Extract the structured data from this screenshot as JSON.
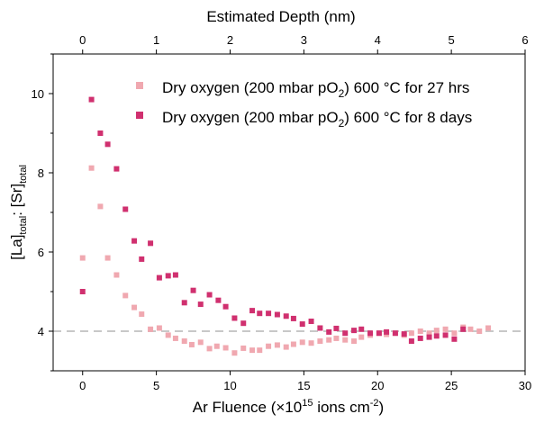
{
  "chart_data": {
    "type": "scatter",
    "xlabel_main": "Ar Fluence (×10",
    "xlabel_sup": "15",
    "xlabel_rest": " ions cm",
    "xlabel_sup2": "-2",
    "xlabel_end": ")",
    "x2label": "Estimated Depth (nm)",
    "ylabel_a": "[La]",
    "ylabel_a_sub": "total",
    "ylabel_b": ": [Sr]",
    "ylabel_b_sub": "total",
    "xlim": [
      -2,
      30
    ],
    "ylim": [
      3,
      11
    ],
    "x2lim": [
      -0.4,
      6
    ],
    "x_ticks": [
      0,
      5,
      10,
      15,
      20,
      25,
      30
    ],
    "y_ticks": [
      4,
      6,
      8,
      10
    ],
    "x2_ticks": [
      0,
      1,
      2,
      3,
      4,
      5,
      6
    ],
    "reference_line": {
      "y": 4,
      "color": "#c8c8c8",
      "style": "dashed"
    },
    "grid": false,
    "legend_position": "top-right",
    "series": [
      {
        "name_main": "Dry oxygen (200 mbar pO",
        "name_sub": "2",
        "name_end": ") 600 °C for 27 hrs",
        "color": "#f0a8b0",
        "points": [
          [
            0.0,
            5.85
          ],
          [
            0.6,
            8.12
          ],
          [
            1.2,
            7.15
          ],
          [
            1.7,
            5.85
          ],
          [
            2.3,
            5.42
          ],
          [
            2.9,
            4.9
          ],
          [
            3.5,
            4.6
          ],
          [
            4.0,
            4.43
          ],
          [
            4.6,
            4.05
          ],
          [
            5.2,
            4.08
          ],
          [
            5.8,
            3.9
          ],
          [
            6.3,
            3.82
          ],
          [
            6.9,
            3.75
          ],
          [
            7.4,
            3.66
          ],
          [
            8.0,
            3.72
          ],
          [
            8.6,
            3.56
          ],
          [
            9.1,
            3.62
          ],
          [
            9.7,
            3.58
          ],
          [
            10.3,
            3.45
          ],
          [
            10.9,
            3.57
          ],
          [
            11.5,
            3.52
          ],
          [
            12.0,
            3.52
          ],
          [
            12.6,
            3.62
          ],
          [
            13.2,
            3.65
          ],
          [
            13.8,
            3.6
          ],
          [
            14.3,
            3.67
          ],
          [
            14.9,
            3.72
          ],
          [
            15.5,
            3.7
          ],
          [
            16.1,
            3.75
          ],
          [
            16.7,
            3.78
          ],
          [
            17.2,
            3.82
          ],
          [
            17.8,
            3.78
          ],
          [
            18.4,
            3.75
          ],
          [
            18.9,
            3.85
          ],
          [
            19.5,
            3.9
          ],
          [
            20.1,
            3.95
          ],
          [
            20.6,
            3.92
          ],
          [
            21.2,
            3.95
          ],
          [
            21.8,
            3.9
          ],
          [
            22.3,
            3.95
          ],
          [
            22.9,
            4.0
          ],
          [
            23.5,
            3.95
          ],
          [
            24.0,
            4.02
          ],
          [
            24.6,
            4.05
          ],
          [
            25.2,
            3.95
          ],
          [
            25.8,
            4.1
          ],
          [
            26.3,
            4.05
          ],
          [
            26.9,
            4.0
          ],
          [
            27.5,
            4.08
          ]
        ]
      },
      {
        "name_main": "Dry oxygen (200 mbar pO",
        "name_sub": "2",
        "name_end": ") 600 °C for 8 days",
        "color": "#d0306f",
        "points": [
          [
            0.0,
            5.0
          ],
          [
            0.6,
            9.85
          ],
          [
            1.2,
            9.0
          ],
          [
            1.7,
            8.72
          ],
          [
            2.3,
            8.1
          ],
          [
            2.9,
            7.08
          ],
          [
            3.5,
            6.28
          ],
          [
            4.0,
            5.82
          ],
          [
            4.6,
            6.22
          ],
          [
            5.2,
            5.35
          ],
          [
            5.8,
            5.4
          ],
          [
            6.3,
            5.42
          ],
          [
            6.9,
            4.72
          ],
          [
            7.5,
            5.03
          ],
          [
            8.0,
            4.68
          ],
          [
            8.6,
            4.92
          ],
          [
            9.2,
            4.78
          ],
          [
            9.7,
            4.62
          ],
          [
            10.3,
            4.33
          ],
          [
            10.9,
            4.2
          ],
          [
            11.5,
            4.52
          ],
          [
            12.0,
            4.45
          ],
          [
            12.6,
            4.45
          ],
          [
            13.2,
            4.42
          ],
          [
            13.8,
            4.38
          ],
          [
            14.3,
            4.32
          ],
          [
            14.9,
            4.18
          ],
          [
            15.5,
            4.25
          ],
          [
            16.1,
            4.08
          ],
          [
            16.7,
            3.98
          ],
          [
            17.2,
            4.07
          ],
          [
            17.8,
            3.95
          ],
          [
            18.4,
            4.02
          ],
          [
            18.9,
            4.05
          ],
          [
            19.5,
            3.95
          ],
          [
            20.1,
            3.95
          ],
          [
            20.6,
            3.98
          ],
          [
            21.2,
            3.95
          ],
          [
            21.8,
            3.93
          ],
          [
            22.3,
            3.75
          ],
          [
            22.9,
            3.82
          ],
          [
            23.5,
            3.85
          ],
          [
            24.0,
            3.88
          ],
          [
            24.6,
            3.9
          ],
          [
            25.2,
            3.8
          ],
          [
            25.8,
            4.05
          ]
        ]
      }
    ]
  }
}
